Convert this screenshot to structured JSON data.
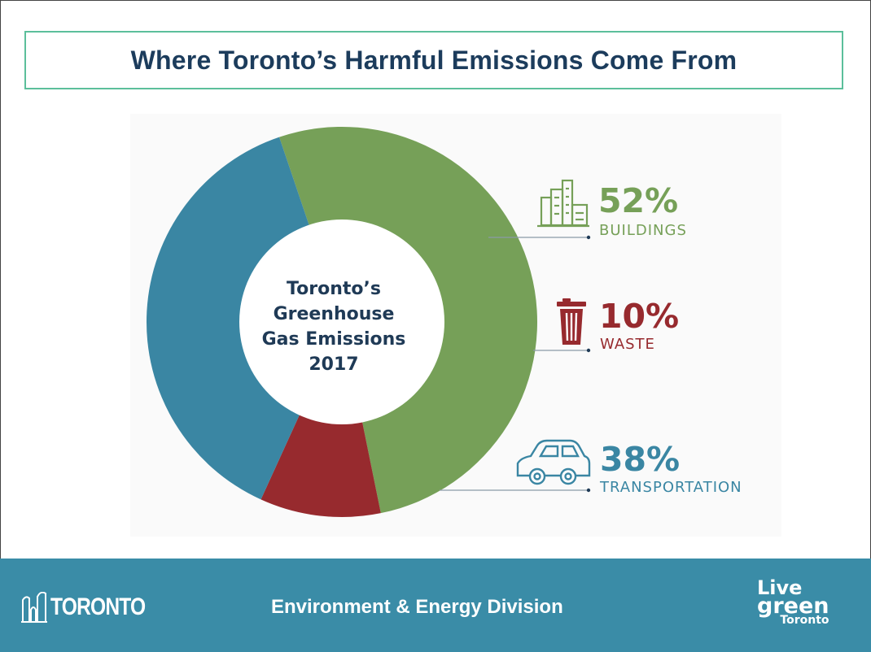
{
  "header": {
    "title": "Where Toronto’s Harmful Emissions Come From"
  },
  "chart_data": {
    "type": "pie",
    "title": "",
    "center_label": [
      "Toronto’s",
      "Greenhouse",
      "Gas Emissions",
      "2017"
    ],
    "slices": [
      {
        "name": "BUILDINGS",
        "value": 52,
        "label": "52%",
        "color": "#76a058",
        "icon": "buildings-icon"
      },
      {
        "name": "WASTE",
        "value": 10,
        "label": "10%",
        "color": "#972a2e",
        "icon": "trash-can-icon"
      },
      {
        "name": "TRANSPORTATION",
        "value": 38,
        "label": "38%",
        "color": "#3a86a3",
        "icon": "car-icon"
      }
    ],
    "donut": true
  },
  "footer": {
    "org_name": "TORONTO",
    "division": "Environment & Energy Division",
    "logo_live": "Live",
    "logo_green": "green",
    "logo_toronto": "Toronto",
    "background": "#3a8ca7"
  }
}
